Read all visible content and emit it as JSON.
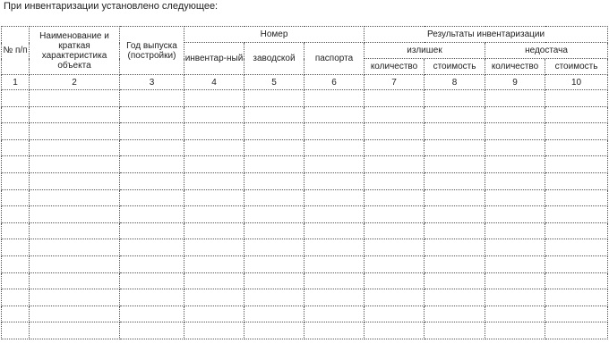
{
  "intro_text": "При инвентаризации установлено следующее:",
  "table": {
    "headers": {
      "col_no": "№ п/п",
      "col_name": "Наименование и краткая характеристика объекта",
      "col_year": "Год выпуска (постройки)",
      "group_number": "Номер",
      "col_inventory": "инвентар-ный",
      "col_factory": "заводской",
      "col_passport": "паспорта",
      "group_results": "Результаты инвентаризации",
      "group_surplus": "излишек",
      "group_shortage": "недостача",
      "col_surplus_qty": "количество",
      "col_surplus_cost": "стоимость",
      "col_shortage_qty": "количество",
      "col_shortage_cost": "стоимость"
    },
    "column_numbers": [
      "1",
      "2",
      "3",
      "4",
      "5",
      "6",
      "7",
      "8",
      "9",
      "10"
    ],
    "empty_row_count": 15
  }
}
